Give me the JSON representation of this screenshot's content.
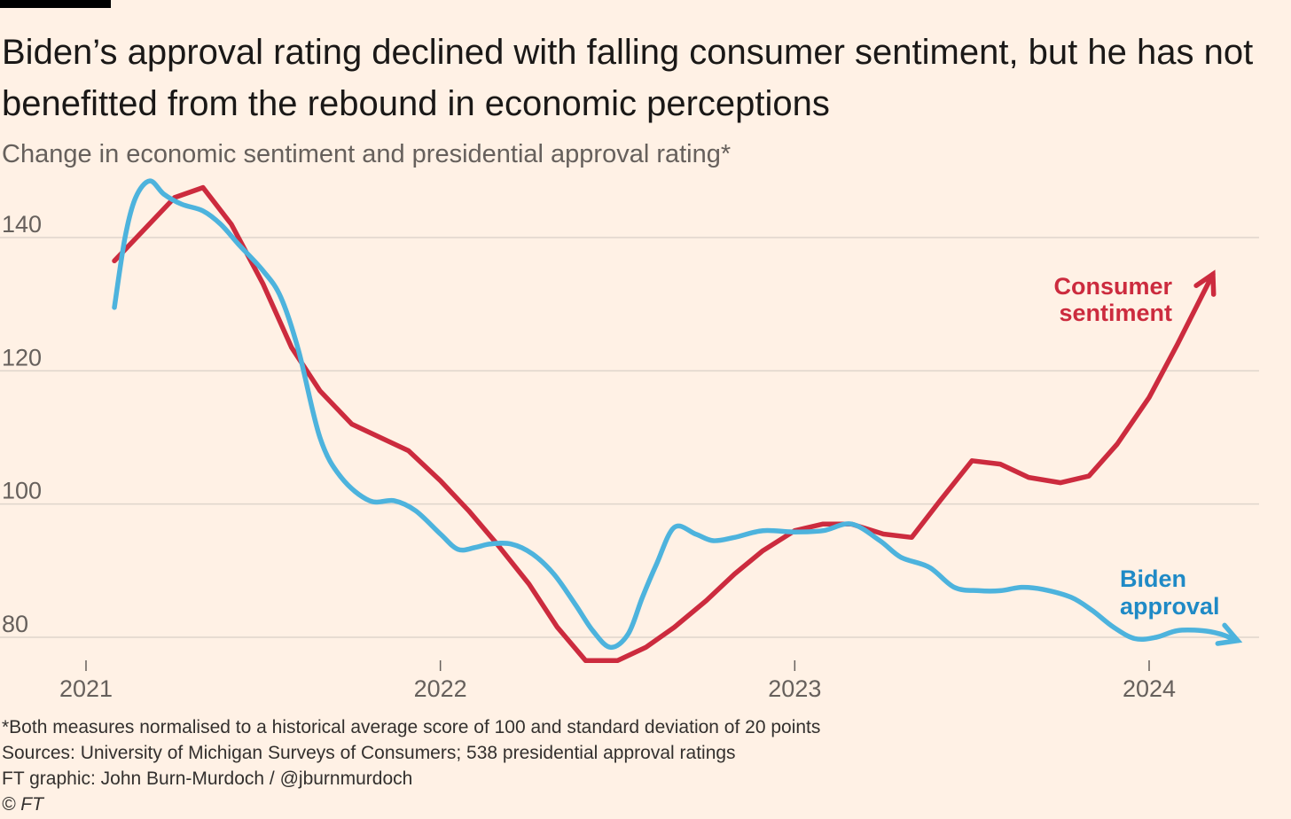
{
  "title": "Biden’s approval rating declined with falling consumer sentiment, but he has not benefitted from the rebound in economic perceptions",
  "subtitle": "Change in economic sentiment and presidential approval rating*",
  "footnotes": {
    "note": "*Both measures normalised to a historical average score of 100 and standard deviation of 20 points",
    "sources": "Sources: University of Michigan Surveys of Consumers; 538 presidential approval ratings",
    "credit": "FT graphic: John Burn-Murdoch / @jburnmurdoch",
    "copyright": "© FT"
  },
  "colors": {
    "background": "#fff1e5",
    "consumer": "#cc2b3e",
    "biden": "#4db3dd",
    "biden_label": "#1f8ac6",
    "grid": "#dfd5cb"
  },
  "chart_data": {
    "type": "line",
    "title": "Biden’s approval rating declined with falling consumer sentiment, but he has not benefitted from the rebound in economic perceptions",
    "xlabel": "",
    "ylabel": "",
    "xlim": [
      2021.0,
      2024.35
    ],
    "ylim": [
      76,
      150
    ],
    "x_ticks": [
      2021,
      2022,
      2023,
      2024
    ],
    "x_tick_labels": [
      "2021",
      "2022",
      "2023",
      "2024"
    ],
    "y_ticks": [
      80,
      100,
      120,
      140
    ],
    "y_tick_labels": [
      "80",
      "100",
      "120",
      "140"
    ],
    "grid": "horizontal",
    "legend": "direct labels",
    "series": [
      {
        "name": "Consumer sentiment",
        "label_lines": [
          "Consumer",
          "sentiment"
        ],
        "color": "#cc2b3e",
        "arrow_end": true,
        "x": [
          2021.08,
          2021.25,
          2021.33,
          2021.41,
          2021.5,
          2021.58,
          2021.66,
          2021.75,
          2021.83,
          2021.91,
          2022.0,
          2022.08,
          2022.16,
          2022.25,
          2022.33,
          2022.41,
          2022.5,
          2022.58,
          2022.66,
          2022.75,
          2022.83,
          2022.91,
          2023.0,
          2023.08,
          2023.16,
          2023.25,
          2023.33,
          2023.41,
          2023.5,
          2023.58,
          2023.66,
          2023.75,
          2023.83,
          2023.91,
          2024.0,
          2024.08,
          2024.18
        ],
        "y": [
          136.5,
          146,
          147.5,
          142,
          133,
          123.5,
          117,
          112,
          110,
          108,
          103.5,
          99,
          94,
          88,
          81.5,
          76.5,
          76.5,
          78.5,
          81.5,
          85.5,
          89.5,
          93,
          96,
          97,
          97,
          95.5,
          95,
          100.5,
          106.5,
          106,
          104,
          103.2,
          104.2,
          109,
          116,
          124,
          134.5
        ]
      },
      {
        "name": "Biden approval",
        "label_lines": [
          "Biden",
          "approval"
        ],
        "color": "#4db3dd",
        "arrow_end": true,
        "x": [
          2021.08,
          2021.11,
          2021.14,
          2021.18,
          2021.22,
          2021.27,
          2021.33,
          2021.38,
          2021.43,
          2021.5,
          2021.55,
          2021.6,
          2021.66,
          2021.72,
          2021.8,
          2021.87,
          2021.93,
          2022.0,
          2022.05,
          2022.1,
          2022.14,
          2022.2,
          2022.26,
          2022.32,
          2022.38,
          2022.43,
          2022.48,
          2022.53,
          2022.57,
          2022.61,
          2022.66,
          2022.72,
          2022.77,
          2022.83,
          2022.91,
          2023.0,
          2023.08,
          2023.16,
          2023.24,
          2023.3,
          2023.38,
          2023.45,
          2023.52,
          2023.58,
          2023.64,
          2023.7,
          2023.78,
          2023.84,
          2023.9,
          2023.96,
          2024.02,
          2024.08,
          2024.15,
          2024.2,
          2024.25
        ],
        "y": [
          129.5,
          140,
          146,
          148.5,
          146.5,
          145,
          144,
          142,
          139,
          135,
          131,
          123,
          110,
          104,
          100.5,
          100.5,
          99,
          95.5,
          93.2,
          93.5,
          94,
          94,
          92.5,
          89.5,
          85,
          81,
          78.5,
          80.5,
          86,
          91,
          96.5,
          95.5,
          94.5,
          95,
          96,
          95.8,
          96,
          97,
          94.5,
          92,
          90.5,
          87.5,
          87,
          87,
          87.5,
          87.2,
          86,
          84,
          81.5,
          79.8,
          80,
          81,
          81,
          80.5,
          79.5
        ]
      }
    ]
  }
}
